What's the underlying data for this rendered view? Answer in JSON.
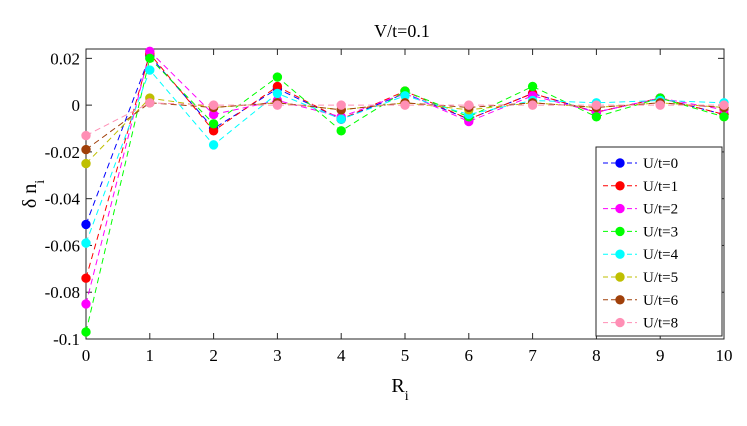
{
  "chart_data": {
    "type": "line",
    "title": "V/t=0.1",
    "xlabel": "R",
    "xlabel_sub": "i",
    "ylabel": "δ n",
    "ylabel_sub": "i",
    "x": [
      0,
      1,
      2,
      3,
      4,
      5,
      6,
      7,
      8,
      9,
      10
    ],
    "xlim": [
      0,
      10
    ],
    "ylim": [
      -0.1,
      0.024
    ],
    "xticks": [
      0,
      1,
      2,
      3,
      4,
      5,
      6,
      7,
      8,
      9,
      10
    ],
    "yticks": [
      -0.1,
      -0.08,
      -0.06,
      -0.04,
      -0.02,
      0,
      0.02
    ],
    "ytick_labels": [
      "-0.1",
      "-0.08",
      "-0.06",
      "-0.04",
      "-0.02",
      "0",
      "0.02"
    ],
    "grid": false,
    "legend_position": "lower-right",
    "line_style": "dashed",
    "marker": "circle",
    "series": [
      {
        "name": "U/t=0",
        "color": "#0000ff",
        "values": [
          -0.051,
          0.021,
          -0.01,
          0.007,
          -0.006,
          0.005,
          -0.006,
          0.005,
          -0.003,
          0.003,
          -0.004
        ]
      },
      {
        "name": "U/t=1",
        "color": "#ff0000",
        "values": [
          -0.074,
          0.022,
          -0.011,
          0.008,
          -0.006,
          0.006,
          -0.006,
          0.005,
          -0.003,
          0.003,
          -0.004
        ]
      },
      {
        "name": "U/t=2",
        "color": "#ff00ff",
        "values": [
          -0.085,
          0.023,
          -0.004,
          0.002,
          -0.005,
          0.005,
          -0.007,
          0.004,
          -0.003,
          0.003,
          -0.002
        ]
      },
      {
        "name": "U/t=3",
        "color": "#00ff00",
        "values": [
          -0.097,
          0.02,
          -0.008,
          0.012,
          -0.011,
          0.006,
          -0.005,
          0.008,
          -0.005,
          0.003,
          -0.005
        ]
      },
      {
        "name": "U/t=4",
        "color": "#00ffff",
        "values": [
          -0.059,
          0.015,
          -0.017,
          0.005,
          -0.006,
          0.004,
          -0.004,
          0.002,
          0.001,
          0.002,
          0.001
        ]
      },
      {
        "name": "U/t=5",
        "color": "#bfbf00",
        "values": [
          -0.025,
          0.003,
          -0.001,
          0.001,
          -0.002,
          0.001,
          -0.002,
          0.001,
          -0.001,
          0.001,
          -0.001
        ]
      },
      {
        "name": "U/t=6",
        "color": "#a0400a",
        "values": [
          -0.019,
          0.001,
          -0.001,
          0.001,
          -0.002,
          0.001,
          -0.001,
          0.001,
          -0.001,
          0.001,
          -0.001
        ]
      },
      {
        "name": "U/t=8",
        "color": "#ff8fb5",
        "values": [
          -0.013,
          0.001,
          0.0,
          0.0,
          0.0,
          0.0,
          0.0,
          0.0,
          0.0,
          0.0,
          0.0
        ]
      }
    ]
  }
}
